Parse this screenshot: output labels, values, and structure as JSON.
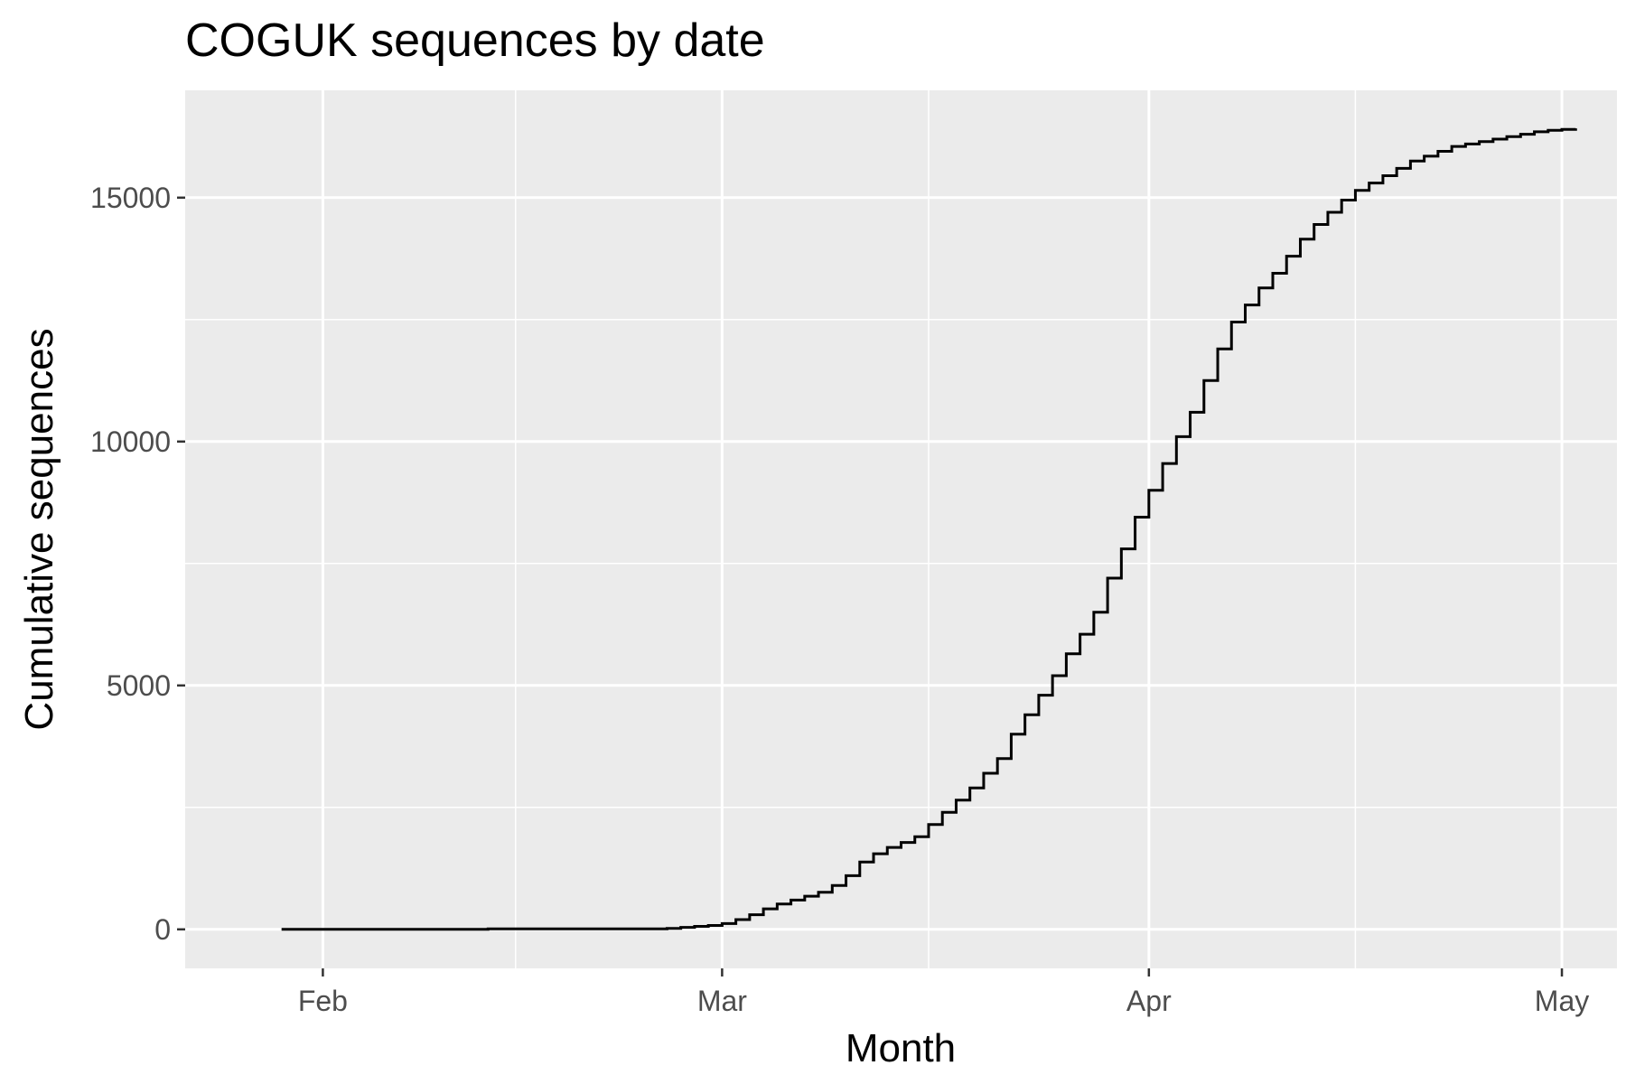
{
  "chart_data": {
    "type": "line",
    "step": true,
    "title": "COGUK sequences by date",
    "xlabel": "Month",
    "ylabel": "Cumulative sequences",
    "xlim": [
      "2020-01-22",
      "2020-05-05"
    ],
    "ylim": [
      -800,
      17200
    ],
    "xticks": [
      {
        "date": "2020-02-01",
        "label": "Feb"
      },
      {
        "date": "2020-03-01",
        "label": "Mar"
      },
      {
        "date": "2020-04-01",
        "label": "Apr"
      },
      {
        "date": "2020-05-01",
        "label": "May"
      }
    ],
    "xminor": [
      "2020-02-15",
      "2020-03-16",
      "2020-04-16"
    ],
    "yticks": [
      0,
      5000,
      10000,
      15000
    ],
    "yminor": [
      2500,
      7500,
      12500
    ],
    "grid": true,
    "legend": "none",
    "colors": {
      "panel": "#EBEBEB",
      "grid": "#FFFFFF",
      "line": "#000000",
      "tick_label": "#4D4D4D"
    },
    "series": [
      {
        "x": [
          "2020-01-29",
          "2020-02-13",
          "2020-02-26",
          "2020-02-27",
          "2020-02-28",
          "2020-02-29",
          "2020-03-01",
          "2020-03-02",
          "2020-03-03",
          "2020-03-04",
          "2020-03-05",
          "2020-03-06",
          "2020-03-07",
          "2020-03-08",
          "2020-03-09",
          "2020-03-10",
          "2020-03-11",
          "2020-03-12",
          "2020-03-13",
          "2020-03-14",
          "2020-03-15",
          "2020-03-16",
          "2020-03-17",
          "2020-03-18",
          "2020-03-19",
          "2020-03-20",
          "2020-03-21",
          "2020-03-22",
          "2020-03-23",
          "2020-03-24",
          "2020-03-25",
          "2020-03-26",
          "2020-03-27",
          "2020-03-28",
          "2020-03-29",
          "2020-03-30",
          "2020-03-31",
          "2020-04-01",
          "2020-04-02",
          "2020-04-03",
          "2020-04-04",
          "2020-04-05",
          "2020-04-06",
          "2020-04-07",
          "2020-04-08",
          "2020-04-09",
          "2020-04-10",
          "2020-04-11",
          "2020-04-12",
          "2020-04-13",
          "2020-04-14",
          "2020-04-15",
          "2020-04-16",
          "2020-04-17",
          "2020-04-18",
          "2020-04-19",
          "2020-04-20",
          "2020-04-21",
          "2020-04-22",
          "2020-04-23",
          "2020-04-24",
          "2020-04-25",
          "2020-04-26",
          "2020-04-27",
          "2020-04-28",
          "2020-04-29",
          "2020-04-30",
          "2020-05-01",
          "2020-05-02"
        ],
        "y": [
          0,
          10,
          20,
          40,
          60,
          80,
          120,
          200,
          300,
          420,
          520,
          600,
          680,
          760,
          900,
          1100,
          1380,
          1550,
          1680,
          1780,
          1900,
          2150,
          2400,
          2650,
          2900,
          3200,
          3500,
          4000,
          4400,
          4800,
          5200,
          5650,
          6050,
          6500,
          7200,
          7800,
          8450,
          9000,
          9550,
          10100,
          10600,
          11250,
          11900,
          12450,
          12800,
          13150,
          13450,
          13800,
          14150,
          14450,
          14700,
          14950,
          15150,
          15300,
          15450,
          15600,
          15750,
          15850,
          15950,
          16050,
          16100,
          16150,
          16200,
          16250,
          16300,
          16350,
          16380,
          16400,
          16420
        ]
      }
    ]
  }
}
